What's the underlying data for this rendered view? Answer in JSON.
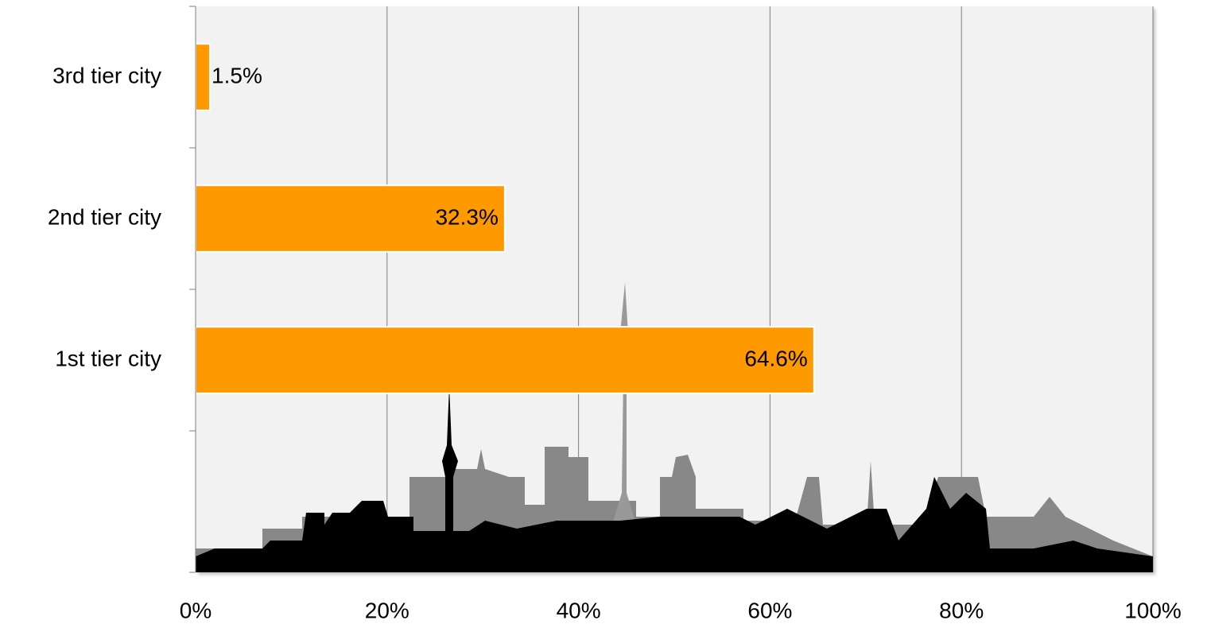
{
  "chart_data": {
    "type": "barh",
    "categories": [
      "3rd tier city",
      "2nd tier city",
      "1st tier city"
    ],
    "values": [
      1.5,
      32.3,
      64.6
    ],
    "value_labels": [
      "1.5%",
      "32.3%",
      "64.6%"
    ],
    "color": "#ff9900",
    "xlim": [
      0,
      100
    ],
    "xticks": [
      {
        "value": 0,
        "label": "0%"
      },
      {
        "value": 20,
        "label": "20%"
      },
      {
        "value": 40,
        "label": "40%"
      },
      {
        "value": 60,
        "label": "60%"
      },
      {
        "value": 80,
        "label": "80%"
      },
      {
        "value": 100,
        "label": "100%"
      }
    ],
    "grid": true
  }
}
